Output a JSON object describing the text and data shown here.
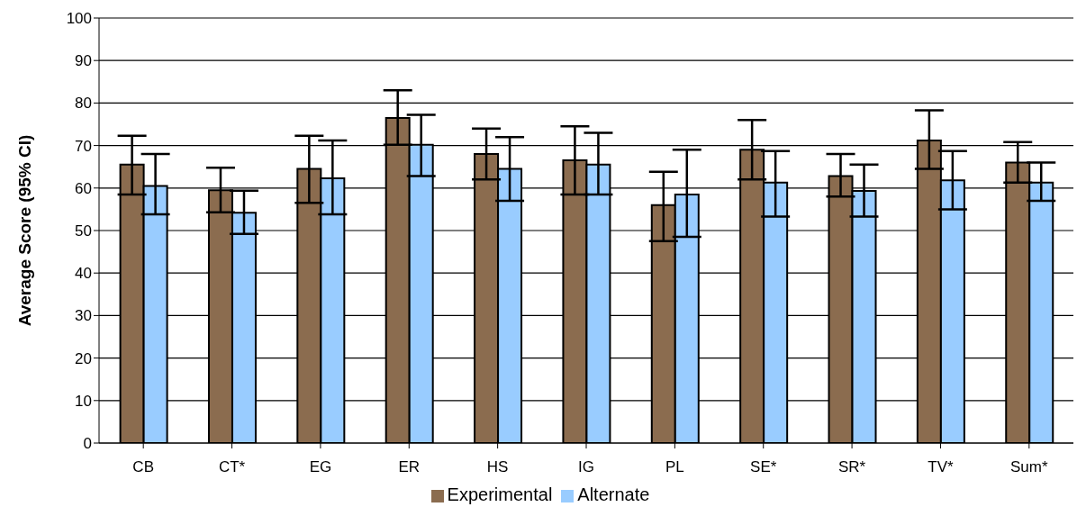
{
  "chart_data": {
    "type": "bar",
    "ylabel": "Average Score (95% CI)",
    "categories": [
      "CB",
      "CT*",
      "EG",
      "ER",
      "HS",
      "IG",
      "PL",
      "SE*",
      "SR*",
      "TV*",
      "Sum*"
    ],
    "series": [
      {
        "name": "Experimental",
        "color": "#8b6c4f",
        "values": [
          65.5,
          59.5,
          64.5,
          76.5,
          68,
          66.5,
          56,
          69,
          62.8,
          71.2,
          66
        ],
        "errors": [
          [
            58.5,
            72.3
          ],
          [
            54.3,
            64.8
          ],
          [
            56.5,
            72.3
          ],
          [
            70.2,
            83
          ],
          [
            62,
            74
          ],
          [
            58.5,
            74.5
          ],
          [
            47.5,
            63.8
          ],
          [
            62,
            76
          ],
          [
            58,
            68
          ],
          [
            64.5,
            78.3
          ],
          [
            61.3,
            70.8
          ]
        ]
      },
      {
        "name": "Alternate",
        "color": "#99ccff",
        "values": [
          60.5,
          54.2,
          62.3,
          70.2,
          64.5,
          65.5,
          58.5,
          61.3,
          59.3,
          61.8,
          61.3
        ],
        "errors": [
          [
            53.8,
            68
          ],
          [
            49.2,
            59.4
          ],
          [
            53.8,
            71.2
          ],
          [
            62.8,
            77.2
          ],
          [
            57,
            72
          ],
          [
            58.5,
            73
          ],
          [
            48.5,
            69
          ],
          [
            53.3,
            68.7
          ],
          [
            53.3,
            65.5
          ],
          [
            55,
            68.7
          ],
          [
            57,
            66
          ]
        ]
      }
    ],
    "ylim": [
      0,
      100
    ],
    "yticks": [
      0,
      10,
      20,
      30,
      40,
      50,
      60,
      70,
      80,
      90,
      100
    ],
    "grid": "y",
    "legend": "bottom"
  }
}
